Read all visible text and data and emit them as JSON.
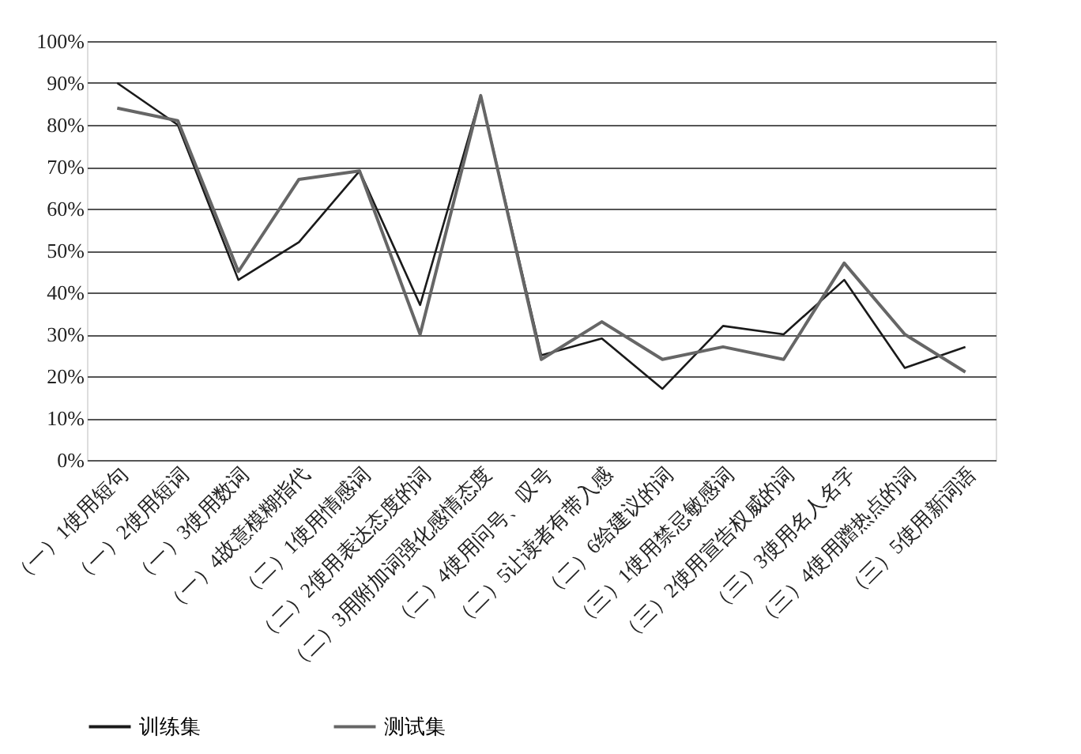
{
  "chart_data": {
    "type": "line",
    "categories": [
      "（一）1使用短句",
      "（一）2使用短词",
      "（一）3使用数词",
      "（一）4故意模糊指代",
      "（二）1使用情感词",
      "（二）2使用表达态度的词",
      "（二）3用附加词强化感情态度",
      "（二）4使用问号、叹号",
      "（二）5让读者有带入感",
      "（二）6给建议的词",
      "（三）1使用禁忌敏感词",
      "（三）2使用宣告权威的词",
      "（三）3使用名人名字",
      "（三）4使用蹭热点的词",
      "（三）5使用新词语"
    ],
    "series": [
      {
        "name": "训练集",
        "color": "#1a1a1a",
        "values": [
          90,
          80,
          43,
          52,
          69,
          37,
          87,
          25,
          29,
          17,
          32,
          30,
          43,
          22,
          27
        ]
      },
      {
        "name": "测试集",
        "color": "#666666",
        "values": [
          84,
          81,
          45,
          67,
          69,
          30,
          87,
          24,
          33,
          24,
          27,
          24,
          47,
          30,
          21
        ]
      }
    ],
    "ylim": [
      0,
      100
    ],
    "yticks": [
      {
        "value": 0,
        "label": "0%"
      },
      {
        "value": 10,
        "label": "10%"
      },
      {
        "value": 20,
        "label": "20%"
      },
      {
        "value": 30,
        "label": "30%"
      },
      {
        "value": 40,
        "label": "40%"
      },
      {
        "value": 50,
        "label": "50%"
      },
      {
        "value": 60,
        "label": "60%"
      },
      {
        "value": 70,
        "label": "70%"
      },
      {
        "value": 80,
        "label": "80%"
      },
      {
        "value": 90,
        "label": "90%"
      },
      {
        "value": 100,
        "label": "100%"
      }
    ],
    "grid": "y",
    "legend": "bottom",
    "marker": "none",
    "line_style": "solid"
  }
}
